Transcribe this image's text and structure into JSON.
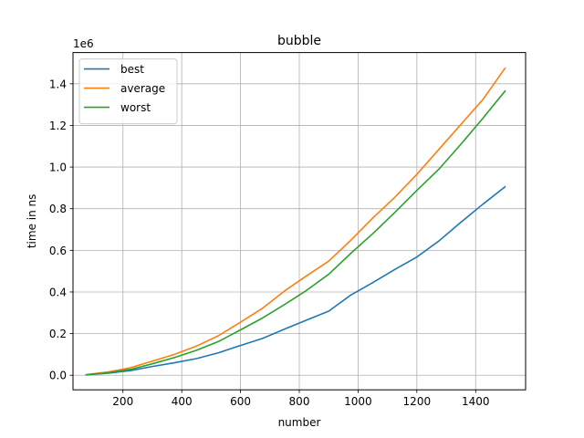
{
  "chart_data": {
    "type": "line",
    "title": "bubble",
    "xlabel": "number",
    "ylabel": "time in ns",
    "y_offset_label": "1e6",
    "xlim": [
      30,
      1570
    ],
    "ylim": [
      -0.07,
      1.55
    ],
    "x_ticks": [
      200,
      400,
      600,
      800,
      1000,
      1200,
      1400
    ],
    "y_ticks": [
      0.0,
      0.2,
      0.4,
      0.6,
      0.8,
      1.0,
      1.2,
      1.4
    ],
    "x_tick_labels": [
      "200",
      "400",
      "600",
      "800",
      "1000",
      "1200",
      "1400"
    ],
    "y_tick_labels": [
      "0.0",
      "0.2",
      "0.4",
      "0.6",
      "0.8",
      "1.0",
      "1.2",
      "1.4"
    ],
    "grid": true,
    "legend_position": "top-left",
    "x": [
      75,
      150,
      225,
      300,
      375,
      450,
      525,
      600,
      675,
      750,
      825,
      900,
      975,
      1050,
      1125,
      1200,
      1275,
      1350,
      1425,
      1500
    ],
    "series": [
      {
        "name": "best",
        "color": "#1f77b4",
        "values": [
          0.002,
          0.01,
          0.022,
          0.042,
          0.06,
          0.08,
          0.108,
          0.143,
          0.177,
          0.222,
          0.265,
          0.308,
          0.385,
          0.445,
          0.508,
          0.568,
          0.645,
          0.735,
          0.822,
          0.905
        ]
      },
      {
        "name": "average",
        "color": "#ff7f0e",
        "values": [
          0.003,
          0.016,
          0.036,
          0.068,
          0.1,
          0.14,
          0.19,
          0.255,
          0.322,
          0.405,
          0.478,
          0.548,
          0.648,
          0.755,
          0.855,
          0.965,
          1.085,
          1.205,
          1.325,
          1.475
        ]
      },
      {
        "name": "worst",
        "color": "#2ca02c",
        "values": [
          0.002,
          0.012,
          0.028,
          0.055,
          0.085,
          0.12,
          0.162,
          0.218,
          0.275,
          0.34,
          0.408,
          0.485,
          0.585,
          0.68,
          0.782,
          0.888,
          0.99,
          1.11,
          1.235,
          1.365
        ]
      }
    ]
  }
}
